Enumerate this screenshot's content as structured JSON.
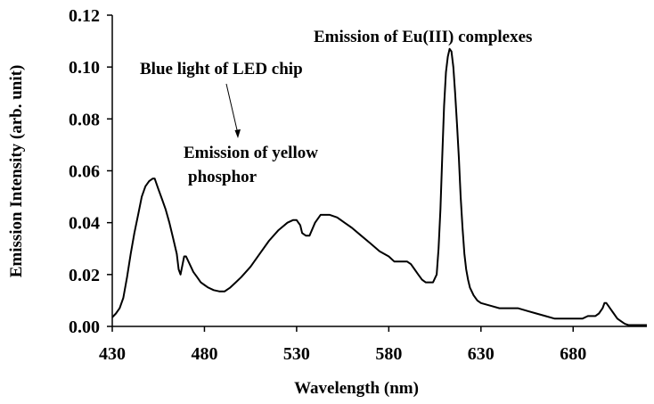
{
  "chart_data": {
    "type": "line",
    "xlabel": "Wavelength (nm)",
    "ylabel": "Emission Intensity (arb. unit)",
    "xlim": [
      430,
      720
    ],
    "ylim": [
      0,
      0.12
    ],
    "x_ticks": [
      "430",
      "480",
      "530",
      "580",
      "630",
      "680"
    ],
    "y_ticks": [
      "0.00",
      "0.02",
      "0.04",
      "0.06",
      "0.08",
      "0.10",
      "0.12"
    ],
    "grid": false,
    "annotations": {
      "blue": "Blue light of LED chip",
      "yellow_line1": "Emission of yellow",
      "yellow_line2": "phosphor",
      "eu": "Emission of Eu(III) complexes"
    },
    "series": [
      {
        "x": [
          430,
          432,
          434,
          436,
          438,
          440,
          442,
          444,
          446,
          448,
          450,
          452,
          453,
          455,
          457,
          459,
          461,
          463,
          465,
          466,
          467,
          469,
          470,
          472,
          474,
          476,
          478,
          480,
          482,
          485,
          488,
          491,
          494,
          497,
          500,
          505,
          510,
          515,
          520,
          525,
          528,
          530,
          532,
          533,
          535,
          537,
          540,
          543,
          545,
          548,
          552,
          556,
          560,
          565,
          570,
          575,
          580,
          583,
          586,
          588,
          590,
          592,
          594,
          596,
          598,
          600,
          602,
          604,
          606,
          607,
          608,
          609,
          610,
          611,
          612,
          613,
          614,
          615,
          616,
          617,
          618,
          619,
          620,
          621,
          622,
          623,
          624,
          626,
          628,
          630,
          635,
          640,
          645,
          650,
          655,
          660,
          665,
          670,
          675,
          680,
          685,
          688,
          690,
          692,
          694,
          696,
          697,
          698,
          699,
          700,
          702,
          704,
          706,
          708,
          710,
          715,
          720
        ],
        "y": [
          0.0035,
          0.005,
          0.007,
          0.011,
          0.019,
          0.028,
          0.036,
          0.043,
          0.05,
          0.054,
          0.056,
          0.057,
          0.057,
          0.053,
          0.049,
          0.045,
          0.04,
          0.034,
          0.028,
          0.022,
          0.02,
          0.027,
          0.027,
          0.024,
          0.021,
          0.019,
          0.017,
          0.016,
          0.015,
          0.014,
          0.0135,
          0.0135,
          0.015,
          0.017,
          0.019,
          0.023,
          0.028,
          0.033,
          0.037,
          0.04,
          0.041,
          0.041,
          0.039,
          0.036,
          0.035,
          0.035,
          0.04,
          0.043,
          0.043,
          0.043,
          0.042,
          0.04,
          0.038,
          0.035,
          0.032,
          0.029,
          0.027,
          0.025,
          0.025,
          0.025,
          0.025,
          0.024,
          0.022,
          0.02,
          0.018,
          0.017,
          0.017,
          0.017,
          0.02,
          0.03,
          0.045,
          0.065,
          0.085,
          0.098,
          0.104,
          0.107,
          0.106,
          0.1,
          0.09,
          0.078,
          0.065,
          0.05,
          0.038,
          0.028,
          0.022,
          0.018,
          0.015,
          0.012,
          0.01,
          0.009,
          0.008,
          0.007,
          0.007,
          0.007,
          0.006,
          0.005,
          0.004,
          0.003,
          0.003,
          0.003,
          0.003,
          0.004,
          0.004,
          0.004,
          0.005,
          0.007,
          0.009,
          0.009,
          0.008,
          0.007,
          0.005,
          0.003,
          0.002,
          0.001,
          0.0005,
          0.0005,
          0.0005
        ]
      }
    ]
  }
}
